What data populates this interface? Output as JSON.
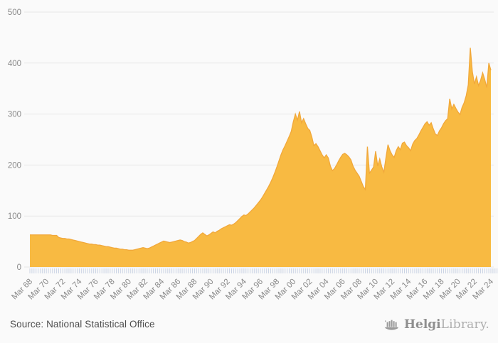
{
  "footer": {
    "source": "Source: National Statistical Office"
  },
  "logo": {
    "name_bold": "Helgi",
    "name_light": "Library."
  },
  "chart_data": {
    "type": "area",
    "title": "",
    "xlabel": "",
    "ylabel": "",
    "x_frequency": "quarterly",
    "x_range": [
      "Mar 1968",
      "Mar 2024"
    ],
    "x_tick_labels": [
      "Mar 68",
      "Mar 70",
      "Mar 72",
      "Mar 74",
      "Mar 76",
      "Mar 78",
      "Mar 80",
      "Mar 82",
      "Mar 84",
      "Mar 86",
      "Mar 88",
      "Mar 90",
      "Mar 92",
      "Mar 94",
      "Mar 96",
      "Mar 98",
      "Mar 00",
      "Mar 02",
      "Mar 04",
      "Mar 06",
      "Mar 08",
      "Mar 10",
      "Mar 12",
      "Mar 14",
      "Mar 16",
      "Mar 18",
      "Mar 20",
      "Mar 22",
      "Mar 24"
    ],
    "x_ticks_per_label": 8,
    "ylim": [
      0,
      500
    ],
    "yticks": [
      0,
      100,
      200,
      300,
      400,
      500
    ],
    "grid": true,
    "legend": "none",
    "values": [
      63,
      63,
      63,
      63,
      63,
      63,
      63,
      63,
      63,
      63,
      63,
      62,
      62,
      62,
      58,
      57,
      56,
      56,
      55,
      55,
      54,
      53,
      52,
      51,
      50,
      49,
      48,
      47,
      46,
      45,
      45,
      44,
      44,
      43,
      43,
      42,
      41,
      40,
      40,
      39,
      38,
      37,
      37,
      36,
      35,
      35,
      34,
      34,
      33,
      33,
      33,
      34,
      35,
      36,
      37,
      38,
      37,
      36,
      37,
      39,
      41,
      43,
      45,
      47,
      49,
      51,
      50,
      49,
      48,
      49,
      50,
      51,
      52,
      53,
      52,
      50,
      49,
      47,
      48,
      50,
      52,
      56,
      60,
      64,
      67,
      64,
      61,
      63,
      66,
      69,
      67,
      70,
      72,
      75,
      77,
      79,
      81,
      83,
      82,
      84,
      87,
      91,
      95,
      99,
      102,
      101,
      104,
      108,
      112,
      116,
      121,
      126,
      131,
      137,
      144,
      151,
      158,
      166,
      175,
      185,
      196,
      208,
      220,
      230,
      238,
      247,
      256,
      266,
      285,
      300,
      288,
      305,
      283,
      291,
      281,
      272,
      268,
      255,
      238,
      242,
      236,
      228,
      220,
      214,
      220,
      214,
      198,
      189,
      193,
      200,
      208,
      215,
      221,
      223,
      220,
      216,
      210,
      198,
      190,
      184,
      178,
      168,
      158,
      152,
      236,
      184,
      190,
      196,
      227,
      198,
      212,
      196,
      186,
      214,
      240,
      228,
      220,
      215,
      228,
      236,
      230,
      243,
      245,
      238,
      234,
      228,
      241,
      248,
      252,
      259,
      267,
      274,
      281,
      285,
      278,
      283,
      271,
      261,
      258,
      267,
      273,
      281,
      287,
      291,
      330,
      310,
      319,
      311,
      304,
      299,
      313,
      322,
      336,
      357,
      430,
      383,
      359,
      373,
      356,
      366,
      381,
      368,
      352,
      400,
      386
    ],
    "colors": {
      "fill": "#F8BA42",
      "line": "#F1A83B",
      "grid": "#E7E7E7",
      "axis_text": "#888888",
      "minor_tick": "#C9D2E3",
      "background": "#FAFAFA"
    }
  }
}
